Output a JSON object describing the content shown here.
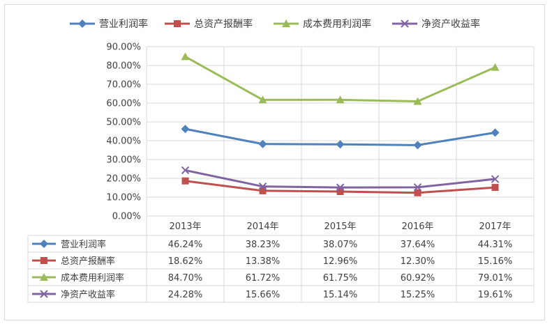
{
  "chart_data": {
    "type": "line",
    "categories": [
      "2013年",
      "2014年",
      "2015年",
      "2016年",
      "2017年"
    ],
    "ylim": [
      0,
      90
    ],
    "yticks": [
      "0.00%",
      "10.00%",
      "20.00%",
      "30.00%",
      "40.00%",
      "50.00%",
      "60.00%",
      "70.00%",
      "80.00%",
      "90.00%"
    ],
    "grid": true,
    "legend": "top",
    "series": [
      {
        "name": "营业利润率",
        "values": [
          46.24,
          38.23,
          38.07,
          37.64,
          44.31
        ],
        "labels": [
          "46.24%",
          "38.23%",
          "38.07%",
          "37.64%",
          "44.31%"
        ],
        "color": "#4f81bd",
        "marker": "diamond"
      },
      {
        "name": "总资产报酬率",
        "values": [
          18.62,
          13.38,
          12.96,
          12.3,
          15.16
        ],
        "labels": [
          "18.62%",
          "13.38%",
          "12.96%",
          "12.30%",
          "15.16%"
        ],
        "color": "#c0504d",
        "marker": "square"
      },
      {
        "name": "成本费用利润率",
        "values": [
          84.7,
          61.72,
          61.75,
          60.92,
          79.01
        ],
        "labels": [
          "84.70%",
          "61.72%",
          "61.75%",
          "60.92%",
          "79.01%"
        ],
        "color": "#9bbb59",
        "marker": "triangle"
      },
      {
        "name": "净资产收益率",
        "values": [
          24.28,
          15.66,
          15.14,
          15.25,
          19.61
        ],
        "labels": [
          "24.28%",
          "15.66%",
          "15.14%",
          "15.25%",
          "19.61%"
        ],
        "color": "#8064a2",
        "marker": "x"
      }
    ]
  }
}
